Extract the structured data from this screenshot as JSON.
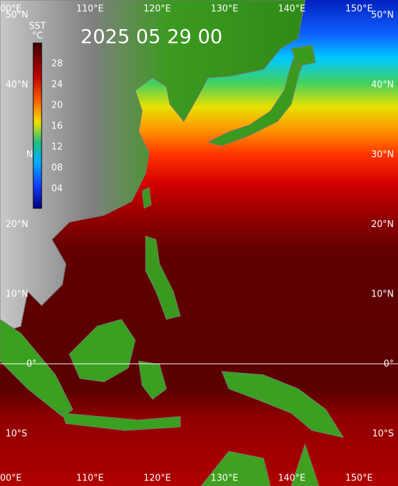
{
  "map": {
    "timestamp": "2025 05 29 00",
    "colorbar": {
      "title": "SST",
      "unit": "°C",
      "ticks": [
        "28",
        "24",
        "20",
        "16",
        "12",
        "08",
        "04"
      ]
    },
    "lon_labels_top": [
      "00°E",
      "110°E",
      "120°E",
      "130°E",
      "140°E",
      "150°E"
    ],
    "lon_labels_bottom": [
      "00°E",
      "110°E",
      "120°E",
      "130°E",
      "140°E",
      "150°E"
    ],
    "lat_labels_left": [
      "50°N",
      "40°N",
      "N",
      "20°N",
      "10°N",
      "0°",
      "10°S"
    ],
    "lat_labels_right": [
      "50°N",
      "40°N",
      "30°N",
      "20°N",
      "10°N",
      "0°",
      "10°S"
    ]
  }
}
